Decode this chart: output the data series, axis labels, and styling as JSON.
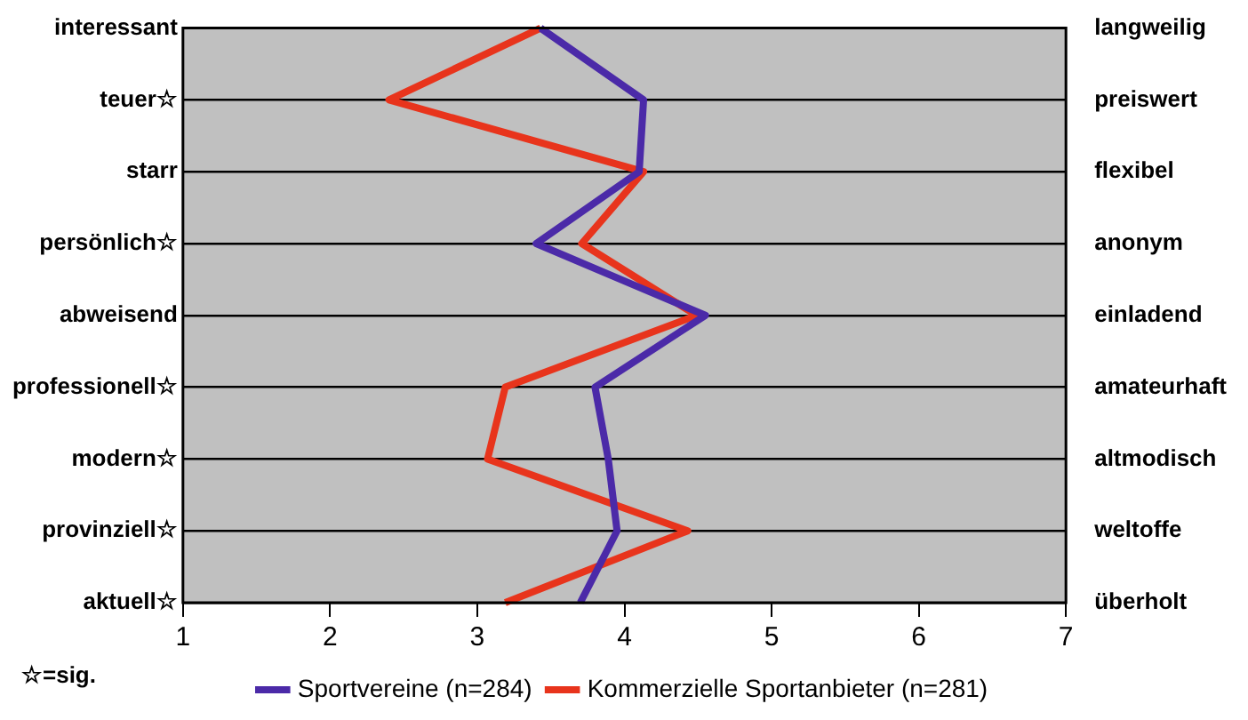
{
  "chart_data": {
    "type": "line",
    "orientation": "horizontal",
    "categories": [
      "interessant",
      "teuer☆",
      "starr",
      "persönlich☆",
      "abweisend",
      "professionell☆",
      "modern☆",
      "provinziell☆",
      "aktuell☆"
    ],
    "y2_categories": [
      "langweilig",
      "preiswert",
      "flexibel",
      "anonym",
      "einladend",
      "amateurhaft",
      "altmodisch",
      "weltoffe",
      "überholt"
    ],
    "series": [
      {
        "name": "Sportvereine (n=284)",
        "color": "#4b2aa8",
        "values": [
          3.43,
          4.13,
          4.1,
          3.4,
          4.55,
          3.8,
          3.89,
          3.95,
          3.7
        ]
      },
      {
        "name": "Kommerzielle Sportanbieter (n=281)",
        "color": "#e8341c",
        "values": [
          3.43,
          2.4,
          4.13,
          3.71,
          4.49,
          3.19,
          3.07,
          4.43,
          3.19
        ]
      }
    ],
    "xlim": [
      1,
      7
    ],
    "xticks": [
      1,
      2,
      3,
      4,
      5,
      6,
      7
    ],
    "grid": "y",
    "line_style": "solid",
    "marker": "none",
    "legend": "bottom",
    "annotations": [
      "☆=sig."
    ]
  }
}
